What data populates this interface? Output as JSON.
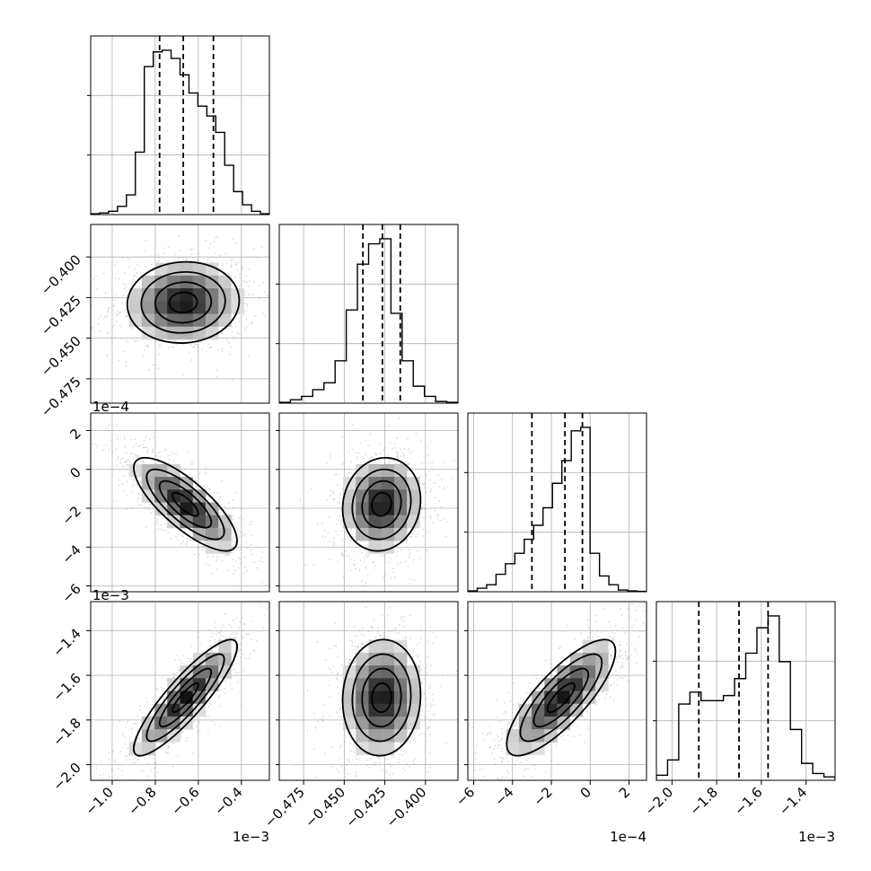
{
  "chart_data": {
    "type": "corner",
    "grid": true,
    "colors": {
      "line": "#000000",
      "grid": "#b0b0b0",
      "scatter": "#9a9a9a",
      "density_max": "#000000"
    },
    "parameters": [
      {
        "range": [
          -0.0011,
          -0.00027
        ],
        "ticks": [
          -0.001,
          -0.0008,
          -0.0006,
          -0.0004
        ],
        "tick_labels": [
          "−1.0",
          "−0.8",
          "−0.6",
          "−0.4"
        ],
        "offset": "1e−3",
        "quantiles": [
          -0.00078,
          -0.00067,
          -0.00053
        ],
        "histogram": [
          0.005,
          0.01,
          0.02,
          0.05,
          0.12,
          0.38,
          0.9,
          0.99,
          1.0,
          0.95,
          0.85,
          0.74,
          0.66,
          0.6,
          0.5,
          0.3,
          0.14,
          0.06,
          0.02,
          0.005
        ]
      },
      {
        "range": [
          -0.49,
          -0.38
        ],
        "ticks": [
          -0.475,
          -0.45,
          -0.425,
          -0.4
        ],
        "tick_labels": [
          "−0.475",
          "−0.450",
          "−0.425",
          "−0.400"
        ],
        "quantiles": [
          -0.4385,
          -0.4265,
          -0.4155
        ],
        "histogram": [
          0.005,
          0.02,
          0.04,
          0.08,
          0.12,
          0.25,
          0.55,
          0.82,
          0.94,
          0.97,
          0.53,
          0.25,
          0.1,
          0.04,
          0.01,
          0.005
        ]
      },
      {
        "range": [
          -0.00063,
          0.00029
        ],
        "ticks": [
          -0.0006,
          -0.0004,
          -0.0002,
          0,
          0.0002
        ],
        "tick_labels": [
          "−6",
          "−4",
          "−2",
          "0",
          "2"
        ],
        "offset": "1e−4",
        "quantiles": [
          -0.0003,
          -0.00013,
          -4e-05
        ],
        "histogram": [
          0.005,
          0.02,
          0.04,
          0.1,
          0.16,
          0.22,
          0.3,
          0.38,
          0.48,
          0.62,
          0.75,
          0.92,
          0.94,
          0.22,
          0.09,
          0.04,
          0.01,
          0.005,
          0.002
        ]
      },
      {
        "range": [
          -0.00207,
          -0.00127
        ],
        "ticks": [
          -0.002,
          -0.0018,
          -0.0016,
          -0.0014
        ],
        "tick_labels": [
          "−2.0",
          "−1.8",
          "−1.6",
          "−1.4"
        ],
        "offset": "1e−3",
        "quantiles": [
          -0.00188,
          -0.0017,
          -0.00157
        ],
        "histogram": [
          0.03,
          0.12,
          0.45,
          0.52,
          0.47,
          0.47,
          0.5,
          0.6,
          0.75,
          0.9,
          0.97,
          0.7,
          0.3,
          0.1,
          0.04,
          0.02
        ]
      }
    ],
    "pairs": [
      {
        "x": 0,
        "y": 1,
        "mean": [
          -0.00067,
          -0.428
        ],
        "sd": [
          0.00013,
          0.0125
        ],
        "corr": 0.05
      },
      {
        "x": 0,
        "y": 2,
        "mean": [
          -0.00066,
          -0.00018
        ],
        "sd": [
          0.00012,
          0.00012
        ],
        "corr": -0.78
      },
      {
        "x": 1,
        "y": 2,
        "mean": [
          -0.427,
          -0.00018
        ],
        "sd": [
          0.012,
          0.00012
        ],
        "corr": 0.1
      },
      {
        "x": 0,
        "y": 3,
        "mean": [
          -0.00066,
          -0.0017
        ],
        "sd": [
          0.00012,
          0.00013
        ],
        "corr": 0.88
      },
      {
        "x": 1,
        "y": 3,
        "mean": [
          -0.427,
          -0.0017
        ],
        "sd": [
          0.012,
          0.00013
        ],
        "corr": 0.05
      },
      {
        "x": 2,
        "y": 3,
        "mean": [
          -0.00015,
          -0.0017
        ],
        "sd": [
          0.00014,
          0.00013
        ],
        "corr": 0.8
      }
    ]
  }
}
